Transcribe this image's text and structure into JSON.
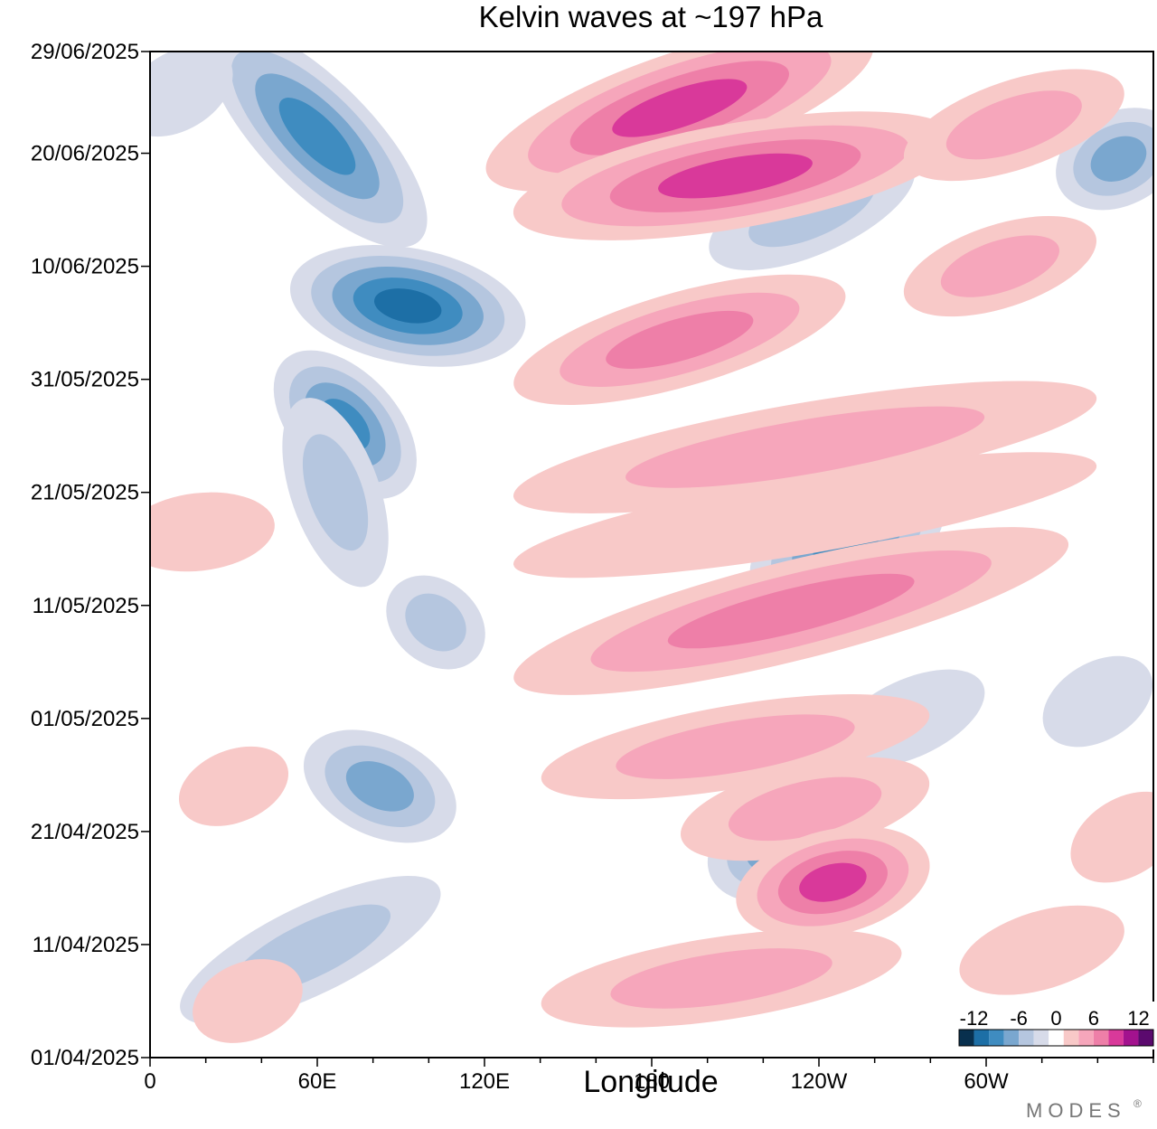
{
  "chart_data": {
    "type": "heatmap",
    "title": "Kelvin waves at ~197 hPa",
    "xlabel": "Longitude",
    "ylabel": "",
    "x_ticks": [
      "0",
      "60E",
      "120E",
      "180",
      "120W",
      "60W"
    ],
    "x_tick_values": [
      0,
      60,
      120,
      180,
      240,
      300
    ],
    "xlim": [
      0,
      360
    ],
    "y_ticks": [
      "01/04/2025",
      "11/04/2025",
      "21/04/2025",
      "01/05/2025",
      "11/05/2025",
      "21/05/2025",
      "31/05/2025",
      "10/06/2025",
      "20/06/2025",
      "29/06/2025"
    ],
    "y_tick_days": [
      0,
      10,
      20,
      30,
      40,
      50,
      60,
      70,
      80,
      89
    ],
    "ylim_days": [
      0,
      89
    ],
    "grid": false,
    "colorbar": {
      "location": "bottom-right",
      "tick_labels": [
        "-12",
        "-6",
        "0",
        "6",
        "12"
      ],
      "levels": [
        -12,
        -10,
        -8,
        -6,
        -4,
        -2,
        2,
        4,
        6,
        8,
        10,
        12
      ],
      "colors": [
        "#08304e",
        "#1d6fa6",
        "#3f8cc0",
        "#7aa7cf",
        "#b5c6df",
        "#d7dbe9",
        "#ffffff",
        "#f8c9c8",
        "#f6a6bb",
        "#ee7fa8",
        "#d9399a",
        "#a3128e",
        "#5b0a6e"
      ]
    },
    "anomalies": [
      {
        "lon0": 30,
        "lat_day0": 89,
        "lon1": 90,
        "lat_day1": 74,
        "amp": -9
      },
      {
        "lon0": 60,
        "lat_day0": 68,
        "lon1": 125,
        "lat_day1": 65,
        "amp": -10
      },
      {
        "lon0": 55,
        "lat_day0": 60,
        "lon1": 85,
        "lat_day1": 52,
        "amp": -8
      },
      {
        "lon0": 58,
        "lat_day0": 56,
        "lon1": 75,
        "lat_day1": 44,
        "amp": -5
      },
      {
        "lon0": 65,
        "lat_day0": 26,
        "lon1": 100,
        "lat_day1": 22,
        "amp": -7
      },
      {
        "lon0": 20,
        "lat_day0": 5,
        "lon1": 95,
        "lat_day1": 14,
        "amp": -5
      },
      {
        "lon0": 95,
        "lat_day0": 40,
        "lon1": 110,
        "lat_day1": 37,
        "amp": -4
      },
      {
        "lon0": 225,
        "lat_day0": 43,
        "lon1": 275,
        "lat_day1": 48,
        "amp": -8
      },
      {
        "lon0": 210,
        "lat_day0": 17,
        "lon1": 240,
        "lat_day1": 20,
        "amp": -7
      },
      {
        "lon0": 210,
        "lat_day0": 72,
        "lon1": 265,
        "lat_day1": 78,
        "amp": -5
      },
      {
        "lon0": 335,
        "lat_day0": 78,
        "lon1": 360,
        "lat_day1": 81,
        "amp": -6
      },
      {
        "lon0": 0,
        "lat_day0": 84,
        "lon1": 20,
        "lat_day1": 87,
        "amp": -3
      },
      {
        "lon0": 255,
        "lat_day0": 28,
        "lon1": 290,
        "lat_day1": 32,
        "amp": -3
      },
      {
        "lon0": 330,
        "lat_day0": 30,
        "lon1": 350,
        "lat_day1": 33,
        "amp": -3
      },
      {
        "lon0": 130,
        "lat_day0": 79,
        "lon1": 250,
        "lat_day1": 89,
        "amp": 9
      },
      {
        "lon0": 140,
        "lat_day0": 75,
        "lon1": 280,
        "lat_day1": 81,
        "amp": 8
      },
      {
        "lon0": 280,
        "lat_day0": 80,
        "lon1": 340,
        "lat_day1": 85,
        "amp": 5
      },
      {
        "lon0": 140,
        "lat_day0": 60,
        "lon1": 240,
        "lat_day1": 67,
        "amp": 6
      },
      {
        "lon0": 280,
        "lat_day0": 68,
        "lon1": 330,
        "lat_day1": 72,
        "amp": 4
      },
      {
        "lon0": 140,
        "lat_day0": 50,
        "lon1": 330,
        "lat_day1": 58,
        "amp": 5
      },
      {
        "lon0": 140,
        "lat_day0": 44,
        "lon1": 330,
        "lat_day1": 52,
        "amp": 3
      },
      {
        "lon0": 140,
        "lat_day0": 34,
        "lon1": 320,
        "lat_day1": 45,
        "amp": 7
      },
      {
        "lon0": 150,
        "lat_day0": 25,
        "lon1": 270,
        "lat_day1": 30,
        "amp": 4
      },
      {
        "lon0": 200,
        "lat_day0": 20,
        "lon1": 270,
        "lat_day1": 24,
        "amp": 5
      },
      {
        "lon0": 220,
        "lat_day0": 14,
        "lon1": 270,
        "lat_day1": 17,
        "amp": 8
      },
      {
        "lon0": 150,
        "lat_day0": 5,
        "lon1": 260,
        "lat_day1": 9,
        "amp": 4
      },
      {
        "lon0": 300,
        "lat_day0": 8,
        "lon1": 340,
        "lat_day1": 11,
        "amp": 3
      },
      {
        "lon0": 0,
        "lat_day0": 46,
        "lon1": 35,
        "lat_day1": 47,
        "amp": 3
      },
      {
        "lon0": 25,
        "lat_day0": 4,
        "lon1": 45,
        "lat_day1": 6,
        "amp": 3
      },
      {
        "lon0": 20,
        "lat_day0": 23,
        "lon1": 40,
        "lat_day1": 25,
        "amp": 2
      },
      {
        "lon0": 340,
        "lat_day0": 18,
        "lon1": 360,
        "lat_day1": 21,
        "amp": 3
      }
    ]
  },
  "branding": {
    "logo": "MODES"
  }
}
